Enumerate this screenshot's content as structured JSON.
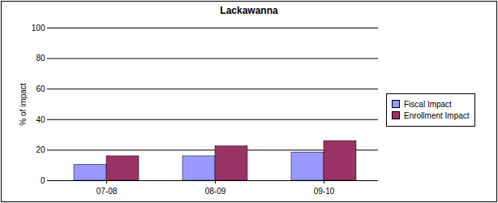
{
  "chart_data": {
    "type": "bar",
    "title": "Lackawanna",
    "y_label": "% of impact",
    "categories": [
      "07-08",
      "08-09",
      "09-10"
    ],
    "series": [
      {
        "name": "Fiscal Impact",
        "color": "#9999ff",
        "values": [
          10.5,
          16,
          18.5
        ]
      },
      {
        "name": "Enrollment Impact",
        "color": "#993366",
        "values": [
          16,
          22.5,
          26
        ]
      }
    ],
    "ylim": [
      0,
      100
    ],
    "yticks": [
      0,
      20,
      40,
      60,
      80,
      100
    ],
    "grid": true,
    "legend": "right"
  }
}
